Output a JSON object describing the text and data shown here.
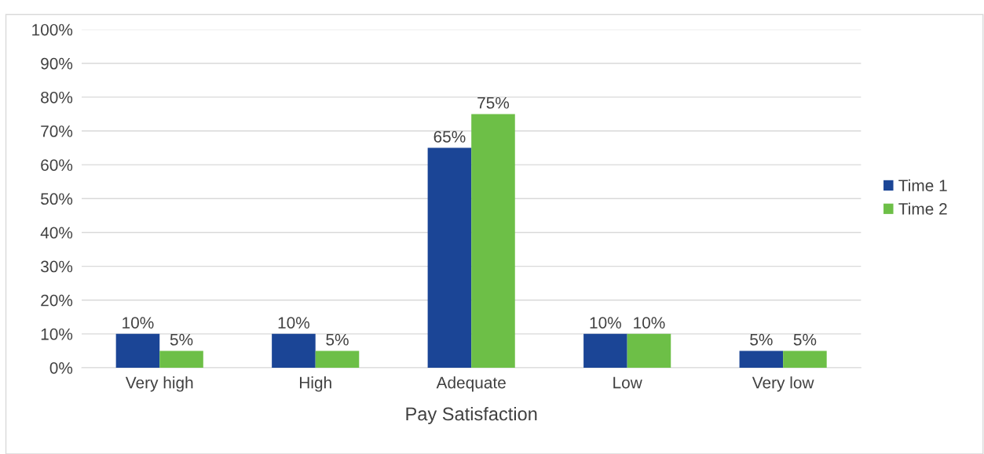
{
  "chart_data": {
    "type": "bar",
    "xlabel": "Pay Satisfaction",
    "categories": [
      "Very high",
      "High",
      "Adequate",
      "Low",
      "Very low"
    ],
    "series": [
      {
        "name": "Time 1",
        "color": "#1b4596",
        "values": [
          10,
          10,
          65,
          10,
          5
        ],
        "value_labels": [
          "10%",
          "10%",
          "65%",
          "10%",
          "5%"
        ]
      },
      {
        "name": "Time 2",
        "color": "#6dbf47",
        "values": [
          5,
          5,
          75,
          10,
          5
        ],
        "value_labels": [
          "5%",
          "5%",
          "75%",
          "10%",
          "5%"
        ]
      }
    ],
    "ylim": [
      0,
      100
    ],
    "yticks": [
      {
        "value": 0,
        "label": "0%"
      },
      {
        "value": 10,
        "label": "10%"
      },
      {
        "value": 20,
        "label": "20%"
      },
      {
        "value": 30,
        "label": "30%"
      },
      {
        "value": 40,
        "label": "40%"
      },
      {
        "value": 50,
        "label": "50%"
      },
      {
        "value": 60,
        "label": "60%"
      },
      {
        "value": 70,
        "label": "70%"
      },
      {
        "value": 80,
        "label": "80%"
      },
      {
        "value": 90,
        "label": "90%"
      },
      {
        "value": 100,
        "label": "100%"
      }
    ],
    "grid": "y",
    "legend": "right"
  }
}
